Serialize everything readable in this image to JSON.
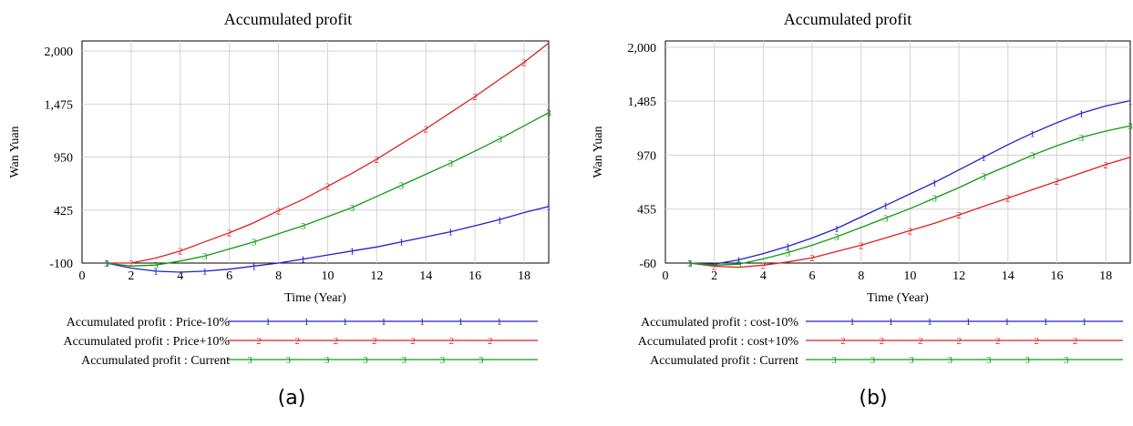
{
  "chart_data": [
    {
      "type": "line",
      "panel_label": "(a)",
      "title": "Accumulated profit",
      "xlabel": "Time (Year)",
      "ylabel": "Wan Yuan",
      "xlim": [
        0,
        19
      ],
      "ylim": [
        -100,
        2100
      ],
      "x_ticks": [
        "0",
        "2",
        "4",
        "6",
        "8",
        "10",
        "12",
        "14",
        "16",
        "18"
      ],
      "y_ticks": [
        "-100",
        "425",
        "950",
        "1,475",
        "2,000"
      ],
      "y_tick_values": [
        -100,
        425,
        950,
        1475,
        2000
      ],
      "x": [
        1,
        2,
        3,
        4,
        5,
        6,
        7,
        8,
        9,
        10,
        11,
        12,
        13,
        14,
        15,
        16,
        17,
        18,
        19
      ],
      "series": [
        {
          "name": "Accumulated profit : Price-10%",
          "marker": "1",
          "color": "#2020cc",
          "values": [
            -100,
            -150,
            -180,
            -190,
            -180,
            -160,
            -130,
            -100,
            -60,
            -20,
            20,
            60,
            110,
            160,
            210,
            270,
            330,
            400,
            460
          ]
        },
        {
          "name": "Accumulated profit : Price+10%",
          "marker": "2",
          "color": "#dd2020",
          "values": [
            -100,
            -100,
            -50,
            20,
            110,
            200,
            300,
            420,
            530,
            660,
            790,
            930,
            1080,
            1230,
            1390,
            1550,
            1720,
            1890,
            2080
          ]
        },
        {
          "name": "Accumulated profit : Current",
          "marker": "3",
          "color": "#119911",
          "values": [
            -100,
            -130,
            -120,
            -80,
            -30,
            40,
            110,
            190,
            270,
            360,
            450,
            560,
            670,
            780,
            890,
            1010,
            1130,
            1260,
            1390
          ]
        }
      ],
      "panel_bottom_label": "(a)"
    },
    {
      "type": "line",
      "panel_label": "(b)",
      "title": "Accumulated profit",
      "xlabel": "Time (Year)",
      "ylabel": "Wan Yuan",
      "xlim": [
        0,
        19
      ],
      "ylim": [
        -60,
        2060
      ],
      "x_ticks": [
        "0",
        "2",
        "4",
        "6",
        "8",
        "10",
        "12",
        "14",
        "16",
        "18"
      ],
      "y_ticks": [
        "-60",
        "455",
        "970",
        "1,485",
        "2,000"
      ],
      "y_tick_values": [
        -60,
        455,
        970,
        1485,
        2000
      ],
      "x": [
        1,
        2,
        3,
        4,
        5,
        6,
        7,
        8,
        9,
        10,
        11,
        12,
        13,
        14,
        15,
        16,
        17,
        18,
        19
      ],
      "series": [
        {
          "name": "Accumulated profit : cost-10%",
          "marker": "1",
          "color": "#2020cc",
          "values": [
            -60,
            -70,
            -30,
            30,
            100,
            180,
            270,
            380,
            490,
            600,
            710,
            830,
            950,
            1070,
            1180,
            1280,
            1370,
            1440,
            1490
          ]
        },
        {
          "name": "Accumulated profit : cost+10%",
          "marker": "2",
          "color": "#dd2020",
          "values": [
            -60,
            -90,
            -100,
            -80,
            -50,
            -10,
            50,
            110,
            180,
            250,
            320,
            400,
            480,
            560,
            640,
            720,
            800,
            880,
            950
          ]
        },
        {
          "name": "Accumulated profit : Current",
          "marker": "3",
          "color": "#119911",
          "values": [
            -60,
            -80,
            -70,
            -20,
            40,
            110,
            190,
            280,
            370,
            460,
            560,
            660,
            770,
            870,
            970,
            1060,
            1140,
            1200,
            1250
          ]
        }
      ],
      "panel_bottom_label": "(b)"
    }
  ]
}
